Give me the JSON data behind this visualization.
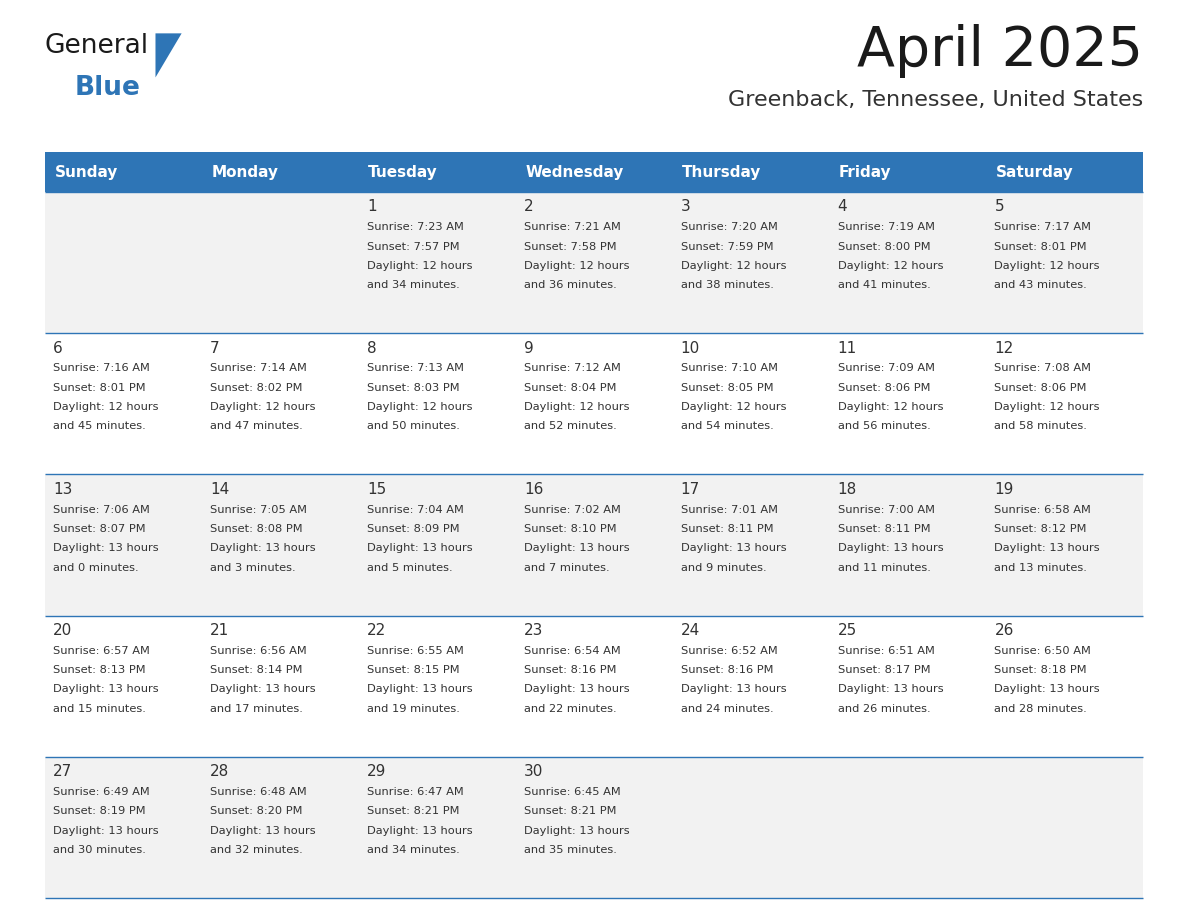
{
  "title": "April 2025",
  "subtitle": "Greenback, Tennessee, United States",
  "header_bg": "#2E75B6",
  "header_text_color": "#FFFFFF",
  "cell_bg_even": "#F2F2F2",
  "cell_bg_odd": "#FFFFFF",
  "day_names": [
    "Sunday",
    "Monday",
    "Tuesday",
    "Wednesday",
    "Thursday",
    "Friday",
    "Saturday"
  ],
  "title_color": "#1a1a1a",
  "subtitle_color": "#333333",
  "cell_text_color": "#333333",
  "grid_color": "#2E75B6",
  "logo_general_color": "#1a1a1a",
  "logo_blue_color": "#2E75B6",
  "logo_triangle_color": "#2E75B6",
  "calendar": [
    [
      {
        "day": "",
        "sunrise": "",
        "sunset": "",
        "daylight": ""
      },
      {
        "day": "",
        "sunrise": "",
        "sunset": "",
        "daylight": ""
      },
      {
        "day": "1",
        "sunrise": "7:23 AM",
        "sunset": "7:57 PM",
        "daylight": "12 hours and 34 minutes."
      },
      {
        "day": "2",
        "sunrise": "7:21 AM",
        "sunset": "7:58 PM",
        "daylight": "12 hours and 36 minutes."
      },
      {
        "day": "3",
        "sunrise": "7:20 AM",
        "sunset": "7:59 PM",
        "daylight": "12 hours and 38 minutes."
      },
      {
        "day": "4",
        "sunrise": "7:19 AM",
        "sunset": "8:00 PM",
        "daylight": "12 hours and 41 minutes."
      },
      {
        "day": "5",
        "sunrise": "7:17 AM",
        "sunset": "8:01 PM",
        "daylight": "12 hours and 43 minutes."
      }
    ],
    [
      {
        "day": "6",
        "sunrise": "7:16 AM",
        "sunset": "8:01 PM",
        "daylight": "12 hours and 45 minutes."
      },
      {
        "day": "7",
        "sunrise": "7:14 AM",
        "sunset": "8:02 PM",
        "daylight": "12 hours and 47 minutes."
      },
      {
        "day": "8",
        "sunrise": "7:13 AM",
        "sunset": "8:03 PM",
        "daylight": "12 hours and 50 minutes."
      },
      {
        "day": "9",
        "sunrise": "7:12 AM",
        "sunset": "8:04 PM",
        "daylight": "12 hours and 52 minutes."
      },
      {
        "day": "10",
        "sunrise": "7:10 AM",
        "sunset": "8:05 PM",
        "daylight": "12 hours and 54 minutes."
      },
      {
        "day": "11",
        "sunrise": "7:09 AM",
        "sunset": "8:06 PM",
        "daylight": "12 hours and 56 minutes."
      },
      {
        "day": "12",
        "sunrise": "7:08 AM",
        "sunset": "8:06 PM",
        "daylight": "12 hours and 58 minutes."
      }
    ],
    [
      {
        "day": "13",
        "sunrise": "7:06 AM",
        "sunset": "8:07 PM",
        "daylight": "13 hours and 0 minutes."
      },
      {
        "day": "14",
        "sunrise": "7:05 AM",
        "sunset": "8:08 PM",
        "daylight": "13 hours and 3 minutes."
      },
      {
        "day": "15",
        "sunrise": "7:04 AM",
        "sunset": "8:09 PM",
        "daylight": "13 hours and 5 minutes."
      },
      {
        "day": "16",
        "sunrise": "7:02 AM",
        "sunset": "8:10 PM",
        "daylight": "13 hours and 7 minutes."
      },
      {
        "day": "17",
        "sunrise": "7:01 AM",
        "sunset": "8:11 PM",
        "daylight": "13 hours and 9 minutes."
      },
      {
        "day": "18",
        "sunrise": "7:00 AM",
        "sunset": "8:11 PM",
        "daylight": "13 hours and 11 minutes."
      },
      {
        "day": "19",
        "sunrise": "6:58 AM",
        "sunset": "8:12 PM",
        "daylight": "13 hours and 13 minutes."
      }
    ],
    [
      {
        "day": "20",
        "sunrise": "6:57 AM",
        "sunset": "8:13 PM",
        "daylight": "13 hours and 15 minutes."
      },
      {
        "day": "21",
        "sunrise": "6:56 AM",
        "sunset": "8:14 PM",
        "daylight": "13 hours and 17 minutes."
      },
      {
        "day": "22",
        "sunrise": "6:55 AM",
        "sunset": "8:15 PM",
        "daylight": "13 hours and 19 minutes."
      },
      {
        "day": "23",
        "sunrise": "6:54 AM",
        "sunset": "8:16 PM",
        "daylight": "13 hours and 22 minutes."
      },
      {
        "day": "24",
        "sunrise": "6:52 AM",
        "sunset": "8:16 PM",
        "daylight": "13 hours and 24 minutes."
      },
      {
        "day": "25",
        "sunrise": "6:51 AM",
        "sunset": "8:17 PM",
        "daylight": "13 hours and 26 minutes."
      },
      {
        "day": "26",
        "sunrise": "6:50 AM",
        "sunset": "8:18 PM",
        "daylight": "13 hours and 28 minutes."
      }
    ],
    [
      {
        "day": "27",
        "sunrise": "6:49 AM",
        "sunset": "8:19 PM",
        "daylight": "13 hours and 30 minutes."
      },
      {
        "day": "28",
        "sunrise": "6:48 AM",
        "sunset": "8:20 PM",
        "daylight": "13 hours and 32 minutes."
      },
      {
        "day": "29",
        "sunrise": "6:47 AM",
        "sunset": "8:21 PM",
        "daylight": "13 hours and 34 minutes."
      },
      {
        "day": "30",
        "sunrise": "6:45 AM",
        "sunset": "8:21 PM",
        "daylight": "13 hours and 35 minutes."
      },
      {
        "day": "",
        "sunrise": "",
        "sunset": "",
        "daylight": ""
      },
      {
        "day": "",
        "sunrise": "",
        "sunset": "",
        "daylight": ""
      },
      {
        "day": "",
        "sunrise": "",
        "sunset": "",
        "daylight": ""
      }
    ]
  ]
}
